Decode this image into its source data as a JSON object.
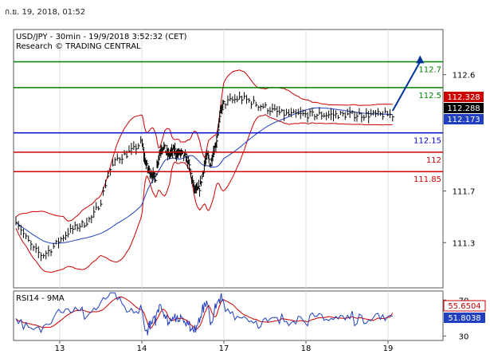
{
  "timestamp": "ก.ย. 19, 2018, 01:52",
  "colors": {
    "price": "#000000",
    "bollinger": "#cc0000",
    "ma": "#1f3fbf",
    "resistance": "#008000",
    "pivot": "#0000cc",
    "support": "#cc0000",
    "arrow": "#003399",
    "rsi": "#1f3fbf",
    "rsi_ma": "#cc0000",
    "frame": "#555555",
    "grid": "#dddddd"
  },
  "chart_data": [
    {
      "type": "line",
      "title": "USD/JPY - 30min - 19/9/2018 3:52:32 (CET)",
      "subtitle": "Research © TRADING CENTRAL",
      "xlabel": "",
      "ylabel": "",
      "ylim": [
        110.95,
        112.95
      ],
      "y_ticks": [
        {
          "value": 112.6,
          "label": "112.6"
        },
        {
          "value": 111.7,
          "label": "111.7"
        },
        {
          "value": 111.3,
          "label": "111.3"
        }
      ],
      "x_ticks": [
        {
          "x": 13,
          "label": "13"
        },
        {
          "x": 14,
          "label": "14"
        },
        {
          "x": 17,
          "label": "17"
        },
        {
          "x": 18,
          "label": "18"
        },
        {
          "x": 19,
          "label": "19"
        }
      ],
      "xlim": [
        12.5,
        19.6
      ],
      "levels": [
        {
          "name": "R2",
          "value": 112.7,
          "label": "112.7",
          "kind": "resistance"
        },
        {
          "name": "R1",
          "value": 112.5,
          "label": "112.5",
          "kind": "resistance"
        },
        {
          "name": "pivot",
          "value": 112.15,
          "label": "112.15",
          "kind": "pivot"
        },
        {
          "name": "S1",
          "value": 112.0,
          "label": "112",
          "kind": "support"
        },
        {
          "name": "S2",
          "value": 111.85,
          "label": "111.85",
          "kind": "support"
        }
      ],
      "price_badges": [
        {
          "value": 112.328,
          "label": "112.328",
          "kind": "upper"
        },
        {
          "value": 112.288,
          "label": "112.288",
          "kind": "last"
        },
        {
          "value": 112.173,
          "label": "112.173",
          "kind": "ma"
        }
      ],
      "series": [
        {
          "role": "close",
          "x": [
            12.5,
            12.6,
            12.7,
            12.8,
            12.9,
            13.0,
            13.1,
            13.2,
            13.3,
            13.4,
            13.5,
            13.6,
            13.7,
            13.8,
            13.9,
            14.0,
            14.1,
            14.2,
            14.3,
            14.4,
            14.5,
            14.6,
            14.7,
            14.8,
            14.9,
            15.0,
            15.1,
            15.2,
            15.3,
            15.4,
            15.5,
            15.6,
            15.7,
            15.8,
            15.9,
            16.0,
            16.1,
            16.2,
            16.3,
            16.4,
            16.5,
            16.6,
            16.7,
            16.8,
            16.9,
            17.0,
            17.1,
            17.2,
            17.3,
            17.4,
            17.5,
            17.6,
            17.7,
            17.8,
            17.9,
            18.0,
            18.1,
            18.2,
            18.3,
            18.4,
            18.5,
            18.6,
            18.7,
            18.8,
            18.9,
            19.0,
            19.05
          ],
          "values": [
            111.48,
            111.35,
            111.25,
            111.2,
            111.25,
            111.32,
            111.38,
            111.42,
            111.45,
            111.5,
            111.62,
            111.85,
            111.95,
            111.98,
            112.02,
            112.08,
            111.95,
            111.88,
            111.85,
            111.82,
            111.8,
            111.95,
            112.02,
            112.05,
            112.0,
            111.98,
            112.0,
            112.02,
            111.98,
            112.0,
            111.98,
            111.96,
            111.92,
            111.82,
            111.72,
            111.7,
            111.72,
            111.82,
            111.92,
            111.98,
            111.9,
            112.0,
            112.05,
            112.2,
            112.33,
            112.38,
            112.4,
            112.42,
            112.4,
            112.37,
            112.35,
            112.32,
            112.3,
            112.29,
            112.29,
            112.29,
            112.29,
            112.29,
            112.29,
            112.29,
            112.29,
            112.29,
            112.29,
            112.29,
            112.29,
            112.29,
            112.288
          ]
        }
      ],
      "projection": [
        {
          "x": 19.05,
          "value": 112.32
        },
        {
          "x": 19.35,
          "value": 112.75
        }
      ]
    },
    {
      "type": "line",
      "title": "RSI14 - 9MA",
      "ylim": [
        25,
        80
      ],
      "y_ticks": [
        {
          "value": 70,
          "label": "70"
        },
        {
          "value": 30,
          "label": "30"
        }
      ],
      "x_ticks": [
        {
          "x": 13,
          "label": "13"
        },
        {
          "x": 14,
          "label": "14"
        },
        {
          "x": 17,
          "label": "17"
        },
        {
          "x": 18,
          "label": "18"
        },
        {
          "x": 19,
          "label": "19"
        }
      ],
      "value_badges": [
        {
          "value": 55.6504,
          "label": "55.6504",
          "kind": "ma"
        },
        {
          "value": 51.8038,
          "label": "51.8038",
          "kind": "rsi"
        }
      ]
    }
  ]
}
